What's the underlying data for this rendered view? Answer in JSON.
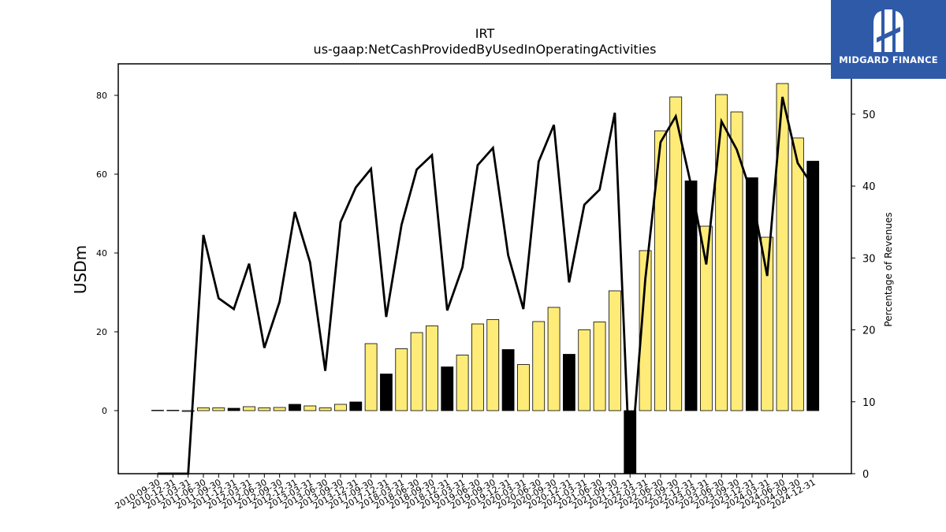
{
  "brand": {
    "name": "MIDGARD FINANCE",
    "logo_icon": "midgard-logo-icon",
    "color": "#2f5aa8"
  },
  "chart_data": {
    "type": "bar",
    "title": "IRT",
    "subtitle": "us-gaap:NetCashProvidedByUsedInOperatingActivities",
    "ylabel": "USDm",
    "y2label": "Percentage of Revenues",
    "ylim": [
      -16,
      88
    ],
    "y2lim": [
      0,
      57
    ],
    "yticks": [
      0,
      20,
      40,
      60,
      80
    ],
    "y2ticks": [
      0,
      10,
      20,
      30,
      40,
      50
    ],
    "categories": [
      "2010-09-30",
      "2010-12-31",
      "2011-03-31",
      "2011-06-30",
      "2011-09-30",
      "2011-12-31",
      "2012-03-31",
      "2012-06-30",
      "2012-09-30",
      "2012-12-31",
      "2013-03-31",
      "2013-06-30",
      "2013-09-30",
      "2013-12-31",
      "2017-09-30",
      "2017-12-31",
      "2018-03-31",
      "2018-06-30",
      "2018-09-30",
      "2018-12-31",
      "2019-03-31",
      "2019-06-30",
      "2019-09-30",
      "2019-12-31",
      "2020-03-31",
      "2020-06-30",
      "2020-09-30",
      "2020-12-31",
      "2021-03-31",
      "2021-06-30",
      "2021-09-30",
      "2021-12-31",
      "2022-03-31",
      "2022-06-30",
      "2022-09-30",
      "2022-12-31",
      "2023-03-31",
      "2023-06-30",
      "2023-09-30",
      "2023-12-31",
      "2024-03-31",
      "2024-06-30",
      "2024-09-30",
      "2024-12-31"
    ],
    "series": [
      {
        "type": "bar",
        "values": [
          0.1,
          0.1,
          -0.2,
          0.7,
          0.7,
          0.6,
          1.0,
          0.7,
          0.8,
          1.6,
          1.2,
          0.7,
          1.6,
          2.2,
          17.0,
          9.3,
          15.7,
          19.8,
          21.5,
          11.1,
          14.1,
          22.0,
          23.1,
          15.5,
          11.7,
          22.6,
          26.2,
          14.3,
          20.5,
          22.5,
          30.4,
          -16.0,
          40.6,
          71.0,
          79.6,
          58.3,
          46.8,
          80.2,
          75.8,
          59.1,
          44.0,
          83.0,
          69.2,
          63.3
        ],
        "highlight_indices": [
          5,
          9,
          13,
          15,
          19,
          23,
          27,
          31,
          35,
          39,
          43
        ]
      },
      {
        "type": "line",
        "axis": "right",
        "values": [
          0,
          0,
          0,
          33.2,
          24.4,
          22.9,
          29.2,
          17.5,
          23.9,
          36.4,
          29.4,
          14.3,
          35.0,
          39.8,
          42.4,
          21.8,
          34.6,
          42.3,
          44.3,
          22.7,
          28.7,
          42.9,
          45.3,
          30.4,
          22.9,
          43.4,
          48.5,
          26.6,
          37.4,
          39.5,
          50.2,
          0,
          27.1,
          46.1,
          49.7,
          40.2,
          29.1,
          49.0,
          45.1,
          38.7,
          27.5,
          52.4,
          43.2,
          40.0
        ]
      }
    ],
    "colors": {
      "bar": "#ffec78",
      "bar_highlight": "#000000",
      "line": "#000000"
    },
    "grid": false
  }
}
